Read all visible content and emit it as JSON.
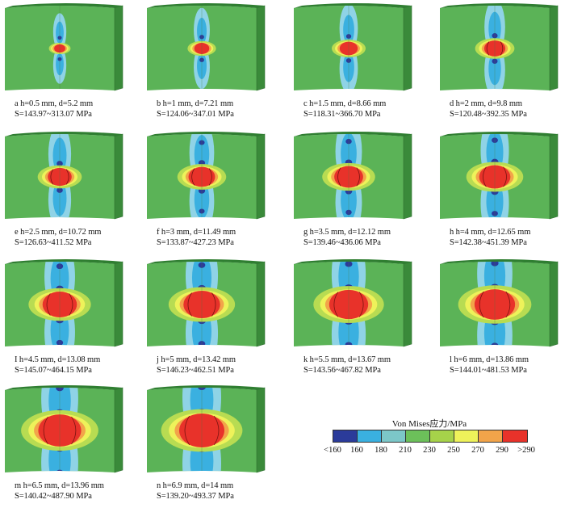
{
  "colors": {
    "background": "#5bb357",
    "side": "#3a8a3a",
    "topEdge": "#2f7e31",
    "lightBlue": "#8fd3e6",
    "midBlue": "#3ab0e0",
    "darkBlue": "#2b3b9a",
    "cyanGreen": "#7cc7a8",
    "yellowGreen": "#b8dc52",
    "yellow": "#eef25a",
    "orange": "#f2a44a",
    "red": "#e8322a"
  },
  "panels": [
    {
      "letter": "a",
      "line1": "a  h=0.5 mm, d=5.2 mm",
      "line2": "S=143.97~313.07 MPa",
      "scale": 0.12
    },
    {
      "letter": "b",
      "line1": "b  h=1 mm, d=7.21 mm",
      "line2": "S=124.06~347.01 MPa",
      "scale": 0.22
    },
    {
      "letter": "c",
      "line1": "c  h=1.5 mm, d=8.66 mm",
      "line2": "S=118.31~366.70 MPa",
      "scale": 0.3
    },
    {
      "letter": "d",
      "line1": "d  h=2 mm, d=9.8 mm",
      "line2": "S=120.48~392.35 MPa",
      "scale": 0.38
    },
    {
      "letter": "e",
      "line1": "e  h=2.5 mm, d=10.72 mm",
      "line2": "S=126.63~411.52 MPa",
      "scale": 0.45
    },
    {
      "letter": "f",
      "line1": "f  h=3 mm, d=11.49 mm",
      "line2": "S=133.87~427.23 MPa",
      "scale": 0.52
    },
    {
      "letter": "g",
      "line1": "g  h=3.5 mm, d=12.12 mm",
      "line2": "S=139.46~436.06 MPa",
      "scale": 0.58
    },
    {
      "letter": "h",
      "line1": "h  h=4 mm, d=12.65 mm",
      "line2": "S=142.38~451.39 MPa",
      "scale": 0.64
    },
    {
      "letter": "I",
      "line1": "I  h=4.5 mm, d=13.08 mm",
      "line2": "S=145.07~464.15 MPa",
      "scale": 0.72
    },
    {
      "letter": "j",
      "line1": "j  h=5 mm, d=13.42 mm",
      "line2": "S=146.23~462.51 MPa",
      "scale": 0.78
    },
    {
      "letter": "k",
      "line1": "k  h=5.5 mm, d=13.67 mm",
      "line2": "S=143.56~467.82 MPa",
      "scale": 0.84
    },
    {
      "letter": "l",
      "line1": "l  h=6 mm, d=13.86 mm",
      "line2": "S=144.01~481.53 MPa",
      "scale": 0.88
    },
    {
      "letter": "m",
      "line1": "m  h=6.5 mm, d=13.96 mm",
      "line2": "S=140.42~487.90 MPa",
      "scale": 0.94
    },
    {
      "letter": "n",
      "line1": "n  h=6.9 mm, d=14 mm",
      "line2": "S=139.20~493.37 MPa",
      "scale": 1.0
    }
  ],
  "legend": {
    "title": "Von Mises应力/MPa",
    "colors": [
      "#2b3b9a",
      "#3ab0e0",
      "#7cc7c8",
      "#6cc05a",
      "#a6d24a",
      "#eef25a",
      "#f2a44a",
      "#e8322a"
    ],
    "ticks": [
      "<160",
      "160",
      "180",
      "210",
      "230",
      "250",
      "270",
      "290",
      ">290"
    ]
  }
}
